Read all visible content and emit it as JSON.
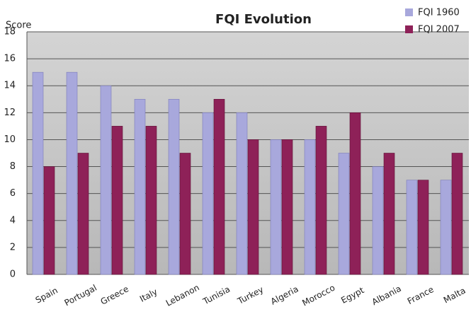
{
  "chart_data": {
    "type": "bar",
    "title": "FQI Evolution",
    "y_label": "Score",
    "categories": [
      "Spain",
      "Portugal",
      "Greece",
      "Italy",
      "Lebanon",
      "Tunisia",
      "Turkey",
      "Algeria",
      "Morocco",
      "Egypt",
      "Albania",
      "France",
      "Malta"
    ],
    "series": [
      {
        "name": "FQI 1960",
        "color": "#a8a8dc",
        "values": [
          15,
          15,
          14,
          13,
          13,
          12,
          12,
          10,
          10,
          9,
          8,
          7,
          7
        ]
      },
      {
        "name": "FQI 2007",
        "color": "#8e2158",
        "values": [
          8,
          9,
          11,
          11,
          9,
          13,
          10,
          10,
          11,
          12,
          9,
          7,
          9
        ]
      }
    ],
    "ylim": [
      0,
      18
    ],
    "yticks": [
      0,
      2,
      4,
      6,
      8,
      10,
      12,
      14,
      16,
      18
    ],
    "grid": true,
    "legend": "top-right"
  }
}
